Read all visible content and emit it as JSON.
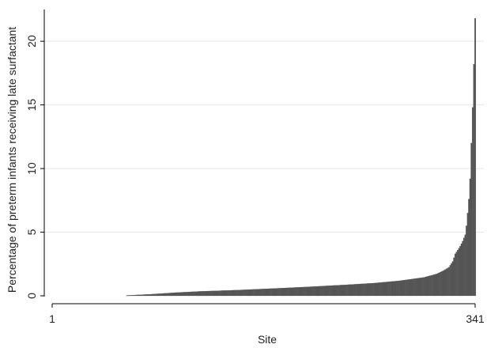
{
  "chart_data": {
    "type": "bar",
    "title": "",
    "xlabel": "Site",
    "ylabel": "Percentage of preterm infants receiving late surfactant",
    "n_sites": 341,
    "x_ticks": [
      1,
      341
    ],
    "y_ticks": [
      0,
      5,
      10,
      15,
      20
    ],
    "ylim": [
      0,
      22
    ],
    "grid": "horizontal",
    "bar_color": "#555555",
    "curve": {
      "description": "sorted site percentages, ascending",
      "points": [
        [
          1,
          0
        ],
        [
          60,
          0
        ],
        [
          61,
          0.03
        ],
        [
          80,
          0.12
        ],
        [
          100,
          0.25
        ],
        [
          120,
          0.35
        ],
        [
          150,
          0.45
        ],
        [
          180,
          0.58
        ],
        [
          210,
          0.72
        ],
        [
          240,
          0.88
        ],
        [
          260,
          1.0
        ],
        [
          280,
          1.18
        ],
        [
          300,
          1.45
        ],
        [
          310,
          1.72
        ],
        [
          315,
          1.95
        ],
        [
          320,
          2.25
        ],
        [
          323,
          2.7
        ],
        [
          325,
          3.3
        ],
        [
          327,
          3.6
        ],
        [
          329,
          3.9
        ],
        [
          331,
          4.3
        ],
        [
          333,
          4.8
        ],
        [
          334,
          5.5
        ],
        [
          335,
          6.5
        ],
        [
          336,
          7.6
        ],
        [
          337,
          9.2
        ],
        [
          338,
          12.0
        ],
        [
          339,
          14.8
        ],
        [
          340,
          18.2
        ],
        [
          341,
          21.8
        ]
      ]
    }
  }
}
